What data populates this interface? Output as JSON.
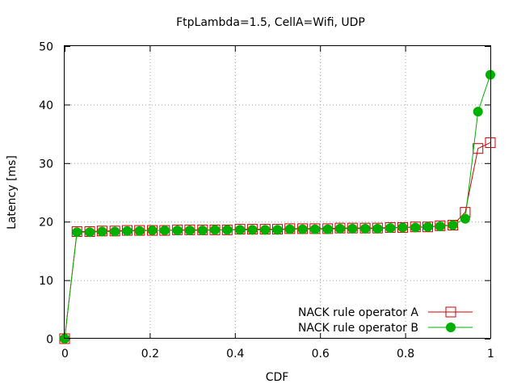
{
  "chart_data": {
    "type": "line",
    "title": "FtpLambda=1.5, CellA=Wifi, UDP",
    "xlabel": "CDF",
    "ylabel": "Latency [ms]",
    "xlim": [
      0,
      1
    ],
    "ylim": [
      0,
      50
    ],
    "xticks": [
      "0",
      "0.2",
      "0.4",
      "0.6",
      "0.8",
      "1"
    ],
    "yticks": [
      "0",
      "10",
      "20",
      "30",
      "40",
      "50"
    ],
    "grid": true,
    "legend_position": "bottom-right",
    "series": [
      {
        "name": "NACK rule operator A",
        "color": "#cc0000",
        "marker": "open-square",
        "x": [
          0,
          0.029,
          0.059,
          0.088,
          0.118,
          0.147,
          0.176,
          0.206,
          0.235,
          0.265,
          0.294,
          0.324,
          0.353,
          0.382,
          0.412,
          0.441,
          0.471,
          0.5,
          0.529,
          0.559,
          0.588,
          0.618,
          0.647,
          0.676,
          0.706,
          0.735,
          0.765,
          0.794,
          0.824,
          0.853,
          0.882,
          0.912,
          0.941,
          0.971,
          1.0
        ],
        "y": [
          0,
          18.3,
          18.3,
          18.4,
          18.4,
          18.5,
          18.5,
          18.5,
          18.5,
          18.6,
          18.6,
          18.6,
          18.6,
          18.6,
          18.7,
          18.7,
          18.7,
          18.7,
          18.8,
          18.8,
          18.8,
          18.8,
          18.9,
          18.9,
          18.9,
          18.9,
          19.0,
          19.0,
          19.1,
          19.1,
          19.3,
          19.4,
          21.6,
          32.5,
          33.5
        ]
      },
      {
        "name": "NACK rule operator B",
        "color": "#00b000",
        "marker": "filled-circle",
        "x": [
          0,
          0.029,
          0.059,
          0.088,
          0.118,
          0.147,
          0.176,
          0.206,
          0.235,
          0.265,
          0.294,
          0.324,
          0.353,
          0.382,
          0.412,
          0.441,
          0.471,
          0.5,
          0.529,
          0.559,
          0.588,
          0.618,
          0.647,
          0.676,
          0.706,
          0.735,
          0.765,
          0.794,
          0.824,
          0.853,
          0.882,
          0.912,
          0.941,
          0.971,
          1.0
        ],
        "y": [
          0,
          18.2,
          18.2,
          18.3,
          18.3,
          18.4,
          18.4,
          18.5,
          18.5,
          18.5,
          18.5,
          18.5,
          18.6,
          18.6,
          18.6,
          18.6,
          18.6,
          18.6,
          18.7,
          18.7,
          18.7,
          18.7,
          18.8,
          18.8,
          18.8,
          18.8,
          18.9,
          19.0,
          19.0,
          19.1,
          19.2,
          19.4,
          20.5,
          38.8,
          45.1
        ]
      }
    ]
  }
}
